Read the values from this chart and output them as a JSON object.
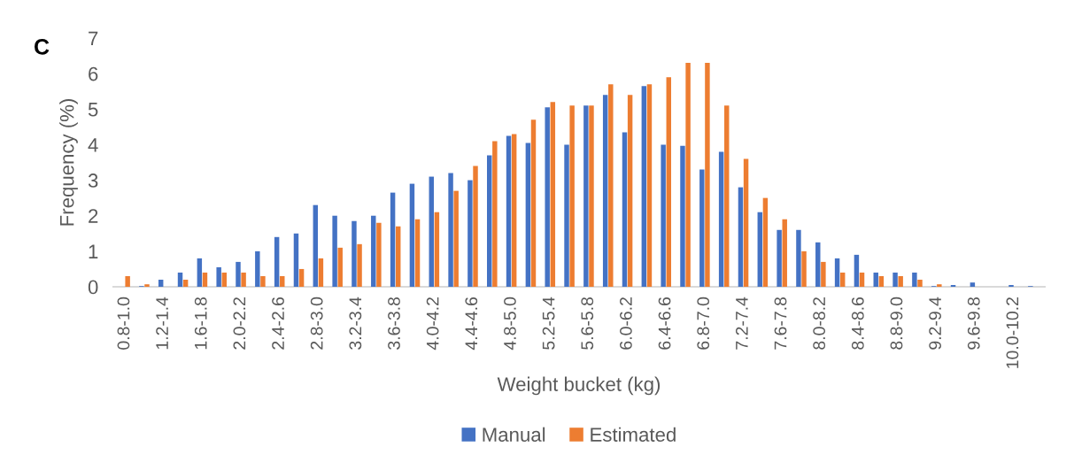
{
  "chart_data": {
    "type": "bar",
    "xlabel": "Weight bucket (kg)",
    "ylabel": "Frequency (%)",
    "annotations": [
      "C"
    ],
    "categories": [
      "0.8-1.0",
      null,
      "1.2-1.4",
      null,
      "1.6-1.8",
      null,
      "2.0-2.2",
      null,
      "2.4-2.6",
      null,
      "2.8-3.0",
      null,
      "3.2-3.4",
      null,
      "3.6-3.8",
      null,
      "4.0-4.2",
      null,
      "4.4-4.6",
      null,
      "4.8-5.0",
      null,
      "5.2-5.4",
      null,
      "5.6-5.8",
      null,
      "6.0-6.2",
      null,
      "6.4-6.6",
      null,
      "6.8-7.0",
      null,
      "7.2-7.4",
      null,
      "7.6-7.8",
      null,
      "8.0-8.2",
      null,
      "8.4-8.6",
      null,
      "8.8-9.0",
      null,
      "9.2-9.4",
      null,
      "9.6-9.8",
      null,
      "10.0-10.2",
      null
    ],
    "series": [
      {
        "name": "Manual",
        "color": "#4472c4",
        "values": [
          null,
          0.02,
          0.2,
          0.4,
          0.8,
          0.55,
          0.7,
          1.0,
          1.4,
          1.5,
          2.3,
          2.0,
          1.85,
          2.0,
          2.65,
          2.9,
          3.1,
          3.2,
          3.0,
          3.7,
          4.25,
          4.05,
          5.05,
          4.0,
          5.1,
          5.4,
          4.35,
          5.65,
          4.0,
          3.97,
          3.3,
          3.8,
          2.8,
          2.1,
          1.6,
          1.6,
          1.25,
          0.8,
          0.9,
          0.4,
          0.4,
          0.4,
          0.02,
          0.05,
          0.12,
          null,
          0.05,
          0.02
        ]
      },
      {
        "name": "Estimated",
        "color": "#ed7d31",
        "values": [
          0.3,
          0.07,
          null,
          0.2,
          0.4,
          0.4,
          0.4,
          0.3,
          0.3,
          0.5,
          0.8,
          1.1,
          1.2,
          1.8,
          1.7,
          1.9,
          2.1,
          2.7,
          3.4,
          4.1,
          4.3,
          4.7,
          5.2,
          5.1,
          5.1,
          5.7,
          5.4,
          5.7,
          5.9,
          6.3,
          6.3,
          5.1,
          3.6,
          2.5,
          1.9,
          1.0,
          0.7,
          0.4,
          0.4,
          0.3,
          0.3,
          0.2,
          0.07,
          null,
          null,
          null,
          null,
          null
        ]
      }
    ],
    "ylim": [
      0,
      7
    ],
    "yticks": [
      0,
      1,
      2,
      3,
      4,
      5,
      6,
      7
    ],
    "grid": false,
    "legend": "bottom"
  }
}
